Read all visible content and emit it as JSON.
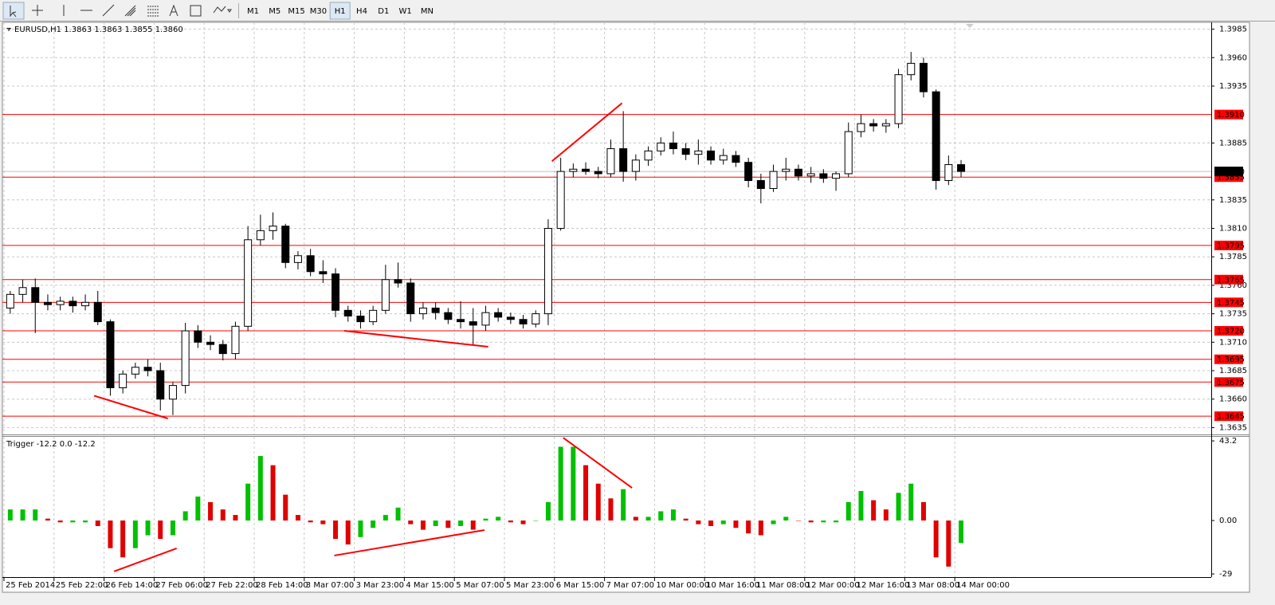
{
  "toolbar": {
    "timeframes": [
      "M1",
      "M5",
      "M15",
      "M30",
      "H1",
      "H4",
      "D1",
      "W1",
      "MN"
    ],
    "active": "H1"
  },
  "chart_data": [
    {
      "type": "candlestick",
      "title": "EURUSD,H1 1.3863 1.3863 1.3855 1.3860",
      "categories": [
        "25 Feb 2014",
        null,
        null,
        null,
        "25 Feb 22:00",
        null,
        null,
        null,
        "26 Feb 14:00",
        null,
        null,
        null,
        "27 Feb 06:00",
        null,
        null,
        null,
        "27 Feb 22:00",
        null,
        null,
        null,
        "28 Feb 14:00",
        null,
        null,
        null,
        "3 Mar 07:00",
        null,
        null,
        null,
        "3 Mar 23:00",
        null,
        null,
        null,
        "4 Mar 15:00",
        null,
        null,
        null,
        "5 Mar 07:00",
        null,
        null,
        null,
        "5 Mar 23:00",
        null,
        null,
        null,
        "6 Mar 15:00",
        null,
        null,
        null,
        "7 Mar 07:00",
        null,
        null,
        null,
        "10 Mar 00:00",
        null,
        null,
        null,
        "10 Mar 16:00",
        null,
        null,
        null,
        "11 Mar 08:00",
        null,
        null,
        null,
        "12 Mar 00:00",
        null,
        null,
        null,
        "12 Mar 16:00",
        null,
        null,
        null,
        "13 Mar 08:00",
        null,
        null,
        null,
        "14 Mar 00:00"
      ],
      "ohlc": [
        [
          1.374,
          1.3755,
          1.3735,
          1.3752
        ],
        [
          1.3752,
          1.3765,
          1.3745,
          1.3758
        ],
        [
          1.3758,
          1.3766,
          1.3718,
          1.3745
        ],
        [
          1.3745,
          1.3752,
          1.3738,
          1.3743
        ],
        [
          1.3743,
          1.375,
          1.3738,
          1.3746
        ],
        [
          1.3746,
          1.375,
          1.3736,
          1.3742
        ],
        [
          1.3742,
          1.3752,
          1.3738,
          1.3745
        ],
        [
          1.3745,
          1.3755,
          1.3725,
          1.3728
        ],
        [
          1.3728,
          1.373,
          1.3663,
          1.367
        ],
        [
          1.367,
          1.3685,
          1.3665,
          1.3682
        ],
        [
          1.3682,
          1.3692,
          1.3678,
          1.3688
        ],
        [
          1.3688,
          1.3695,
          1.368,
          1.3685
        ],
        [
          1.3685,
          1.3692,
          1.365,
          1.366
        ],
        [
          1.366,
          1.3675,
          1.3646,
          1.3672
        ],
        [
          1.3672,
          1.3727,
          1.3665,
          1.372
        ],
        [
          1.372,
          1.3725,
          1.3705,
          1.371
        ],
        [
          1.371,
          1.3716,
          1.3703,
          1.3708
        ],
        [
          1.3708,
          1.3712,
          1.3694,
          1.37
        ],
        [
          1.37,
          1.3728,
          1.3695,
          1.3724
        ],
        [
          1.3724,
          1.3812,
          1.372,
          1.38
        ],
        [
          1.38,
          1.3822,
          1.3795,
          1.3808
        ],
        [
          1.3808,
          1.3824,
          1.38,
          1.3812
        ],
        [
          1.3812,
          1.3814,
          1.3775,
          1.378
        ],
        [
          1.378,
          1.379,
          1.3774,
          1.3786
        ],
        [
          1.3786,
          1.3792,
          1.3768,
          1.3772
        ],
        [
          1.3772,
          1.3782,
          1.3762,
          1.377
        ],
        [
          1.377,
          1.3775,
          1.3732,
          1.3738
        ],
        [
          1.3738,
          1.3742,
          1.3728,
          1.3733
        ],
        [
          1.3733,
          1.3738,
          1.3722,
          1.3728
        ],
        [
          1.3728,
          1.3742,
          1.3725,
          1.3738
        ],
        [
          1.3738,
          1.3778,
          1.3735,
          1.3765
        ],
        [
          1.3765,
          1.378,
          1.3758,
          1.3762
        ],
        [
          1.3762,
          1.3766,
          1.3728,
          1.3735
        ],
        [
          1.3735,
          1.3745,
          1.373,
          1.374
        ],
        [
          1.374,
          1.3745,
          1.373,
          1.3736
        ],
        [
          1.3736,
          1.374,
          1.3726,
          1.373
        ],
        [
          1.373,
          1.3746,
          1.3722,
          1.3728
        ],
        [
          1.3728,
          1.374,
          1.3708,
          1.3725
        ],
        [
          1.3725,
          1.3742,
          1.372,
          1.3736
        ],
        [
          1.3736,
          1.374,
          1.3728,
          1.3732
        ],
        [
          1.3732,
          1.3736,
          1.3726,
          1.373
        ],
        [
          1.373,
          1.3734,
          1.3722,
          1.3726
        ],
        [
          1.3726,
          1.3738,
          1.3723,
          1.3735
        ],
        [
          1.3735,
          1.3818,
          1.3725,
          1.381
        ],
        [
          1.381,
          1.3872,
          1.3808,
          1.386
        ],
        [
          1.386,
          1.3867,
          1.3855,
          1.3862
        ],
        [
          1.3862,
          1.3868,
          1.3857,
          1.386
        ],
        [
          1.386,
          1.3864,
          1.3854,
          1.3858
        ],
        [
          1.3858,
          1.3888,
          1.3855,
          1.388
        ],
        [
          1.388,
          1.3913,
          1.3851,
          1.386
        ],
        [
          1.386,
          1.3875,
          1.3852,
          1.387
        ],
        [
          1.387,
          1.3882,
          1.3865,
          1.3878
        ],
        [
          1.3878,
          1.389,
          1.3874,
          1.3885
        ],
        [
          1.3885,
          1.3895,
          1.3875,
          1.388
        ],
        [
          1.388,
          1.3885,
          1.387,
          1.3875
        ],
        [
          1.3875,
          1.3888,
          1.3866,
          1.3878
        ],
        [
          1.3878,
          1.3882,
          1.3866,
          1.387
        ],
        [
          1.387,
          1.388,
          1.3866,
          1.3874
        ],
        [
          1.3874,
          1.3878,
          1.3864,
          1.3868
        ],
        [
          1.3868,
          1.3872,
          1.3846,
          1.3852
        ],
        [
          1.3852,
          1.3858,
          1.3832,
          1.3845
        ],
        [
          1.3845,
          1.3866,
          1.3842,
          1.386
        ],
        [
          1.386,
          1.3872,
          1.3852,
          1.3862
        ],
        [
          1.3862,
          1.3866,
          1.3852,
          1.3856
        ],
        [
          1.3856,
          1.3864,
          1.385,
          1.3858
        ],
        [
          1.3858,
          1.3862,
          1.385,
          1.3854
        ],
        [
          1.3854,
          1.386,
          1.3843,
          1.3858
        ],
        [
          1.3858,
          1.3903,
          1.3855,
          1.3895
        ],
        [
          1.3895,
          1.391,
          1.389,
          1.3902
        ],
        [
          1.3902,
          1.3906,
          1.3895,
          1.39
        ],
        [
          1.39,
          1.3906,
          1.3894,
          1.3902
        ],
        [
          1.3902,
          1.395,
          1.3898,
          1.3945
        ],
        [
          1.3945,
          1.3965,
          1.394,
          1.3955
        ],
        [
          1.3955,
          1.396,
          1.3925,
          1.393
        ],
        [
          1.393,
          1.3932,
          1.3844,
          1.3852
        ],
        [
          1.3852,
          1.3874,
          1.3848,
          1.3866
        ],
        [
          1.3866,
          1.387,
          1.3855,
          1.386
        ]
      ],
      "up_color": "#ffffff",
      "down_color": "#000000",
      "wick_color": "#000000",
      "ylim": [
        1.3629,
        1.3991
      ],
      "yticks": [
        1.3985,
        {
          "value": 1.396,
          "label": "1.3960"
        },
        1.3935,
        1.3885,
        1.3835,
        {
          "value": 1.381,
          "label": "1.3810"
        },
        1.3785,
        {
          "value": 1.376,
          "label": "1.3760"
        },
        1.3735,
        {
          "value": 1.371,
          "label": "1.3710"
        },
        1.3685,
        {
          "value": 1.366,
          "label": "1.3660"
        },
        1.3635
      ],
      "grid": true,
      "levels": [
        {
          "value": 1.391,
          "label": "1.3910"
        },
        1.3855,
        1.3795,
        1.3765,
        1.3745,
        {
          "value": 1.372,
          "label": "1.3720"
        },
        1.3695,
        1.3675,
        1.3645
      ],
      "level_color": "#ff0000",
      "current_price": {
        "value": 1.386,
        "label": "1.3860"
      },
      "trend_lines": [
        {
          "from": [
            7.2,
            1.3663
          ],
          "to": [
            13.1,
            1.3643
          ]
        },
        {
          "from": [
            27.2,
            1.372
          ],
          "to": [
            38.7,
            1.3706
          ]
        },
        {
          "from": [
            43.8,
            1.3869
          ],
          "to": [
            49.4,
            1.392
          ]
        }
      ],
      "trend_color": "#ff0000"
    },
    {
      "type": "histogram",
      "title": "Trigger -12.2 0.0 -12.2",
      "values": [
        6,
        6,
        6,
        1,
        -1,
        -1,
        -1,
        -3,
        -15,
        -20,
        -15,
        -8,
        -10,
        -8,
        5,
        13,
        10,
        6,
        3,
        20,
        35,
        30,
        14,
        3,
        -1,
        -2,
        -10,
        -13,
        -9,
        -4,
        3,
        7,
        -2,
        -5,
        -3,
        -4,
        -3,
        -5,
        1,
        2,
        -1,
        -2,
        0,
        10,
        40,
        40,
        30,
        20,
        12,
        17,
        2,
        2,
        5,
        6,
        1,
        -2,
        -3,
        -2,
        -4,
        -7,
        -8,
        -2,
        2,
        0,
        -1,
        -1,
        -1,
        10,
        16,
        11,
        6,
        15,
        20,
        10,
        -20,
        -25,
        -12.2
      ],
      "up_color": "#00c000",
      "down_color": "#e00000",
      "ylim": [
        -30.7,
        45.4
      ],
      "yticks": [
        43.2,
        {
          "value": 0,
          "label": "0.00"
        },
        -29
      ],
      "trend_lines": [
        {
          "from": [
            8.8,
            -27.6
          ],
          "to": [
            13.8,
            -15.1
          ]
        },
        {
          "from": [
            26.4,
            -19
          ],
          "to": [
            38.4,
            -5.2
          ]
        },
        {
          "from": [
            44.7,
            44.9
          ],
          "to": [
            50.2,
            17.7
          ]
        }
      ],
      "trend_color": "#ff0000"
    }
  ]
}
